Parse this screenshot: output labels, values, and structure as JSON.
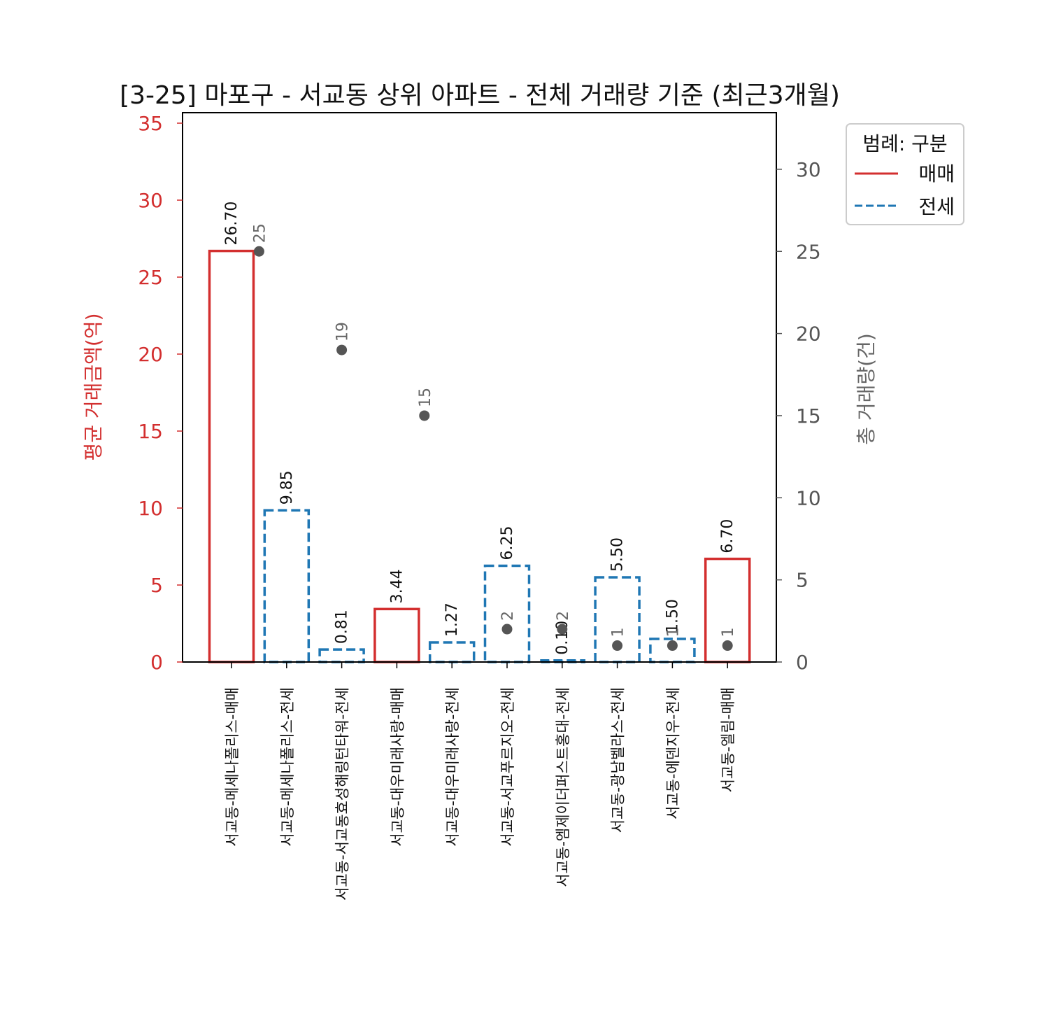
{
  "chart_data": {
    "type": "bar",
    "title": "[3-25] 마포구 - 서교동 상위 아파트 - 전체 거래량 기준 (최근3개월)",
    "xlabel": "",
    "ylabel": "평균 거래금액(억)",
    "ylabel_right": "총 거래량(건)",
    "ylim": [
      0,
      35
    ],
    "ylim_right": [
      0,
      33
    ],
    "yticks": [
      0,
      5,
      10,
      15,
      20,
      25,
      30,
      35
    ],
    "yticks_right": [
      0,
      5,
      10,
      15,
      20,
      25,
      30
    ],
    "grid": false,
    "legend_position": "upper right outside",
    "legend": {
      "title": "범례: 구분",
      "entries": [
        {
          "label": "매매",
          "color": "#d32f2f",
          "style": "solid"
        },
        {
          "label": "전세",
          "color": "#1f77b4",
          "style": "dashed"
        }
      ]
    },
    "categories": [
      "서교동-메세나폴리스-매매",
      "서교동-메세나폴리스-전세",
      "서교동-서교동효성해링턴타워-전세",
      "서교동-대우미래사랑-매매",
      "서교동-대우미래사랑-전세",
      "서교동-서교푸르지오-전세",
      "서교동-엠제이더퍼스트홍대-전세",
      "서교동-광남벨라스-전세",
      "서교동-에덴지우-전세",
      "서교동-엘림-매매"
    ],
    "series": [
      {
        "name": "평균 거래금액(억)",
        "kind": "bar",
        "values": [
          26.7,
          9.85,
          0.81,
          3.44,
          1.27,
          6.25,
          0.1,
          5.5,
          1.5,
          6.7
        ],
        "labels": [
          "26.70",
          "9.85",
          "0.81",
          "3.44",
          "1.27",
          "6.25",
          "0.10",
          "5.50",
          "1.50",
          "6.70"
        ],
        "types": [
          "매매",
          "전세",
          "전세",
          "매매",
          "전세",
          "전세",
          "전세",
          "전세",
          "전세",
          "매매"
        ]
      },
      {
        "name": "총 거래량(건)",
        "kind": "scatter",
        "axis": "right",
        "color": "#555555",
        "points": [
          {
            "x": 0.5,
            "y": 25,
            "label": "25"
          },
          {
            "x": 2,
            "y": 19,
            "label": "19"
          },
          {
            "x": 3.5,
            "y": 15,
            "label": "15"
          },
          {
            "x": 5,
            "y": 2,
            "label": "2"
          },
          {
            "x": 6,
            "y": 2,
            "label": "2"
          },
          {
            "x": 7,
            "y": 1,
            "label": "1"
          },
          {
            "x": 8,
            "y": 1,
            "label": "1"
          },
          {
            "x": 9,
            "y": 1,
            "label": "1"
          }
        ]
      }
    ]
  },
  "colors": {
    "sale": "#d32f2f",
    "jeonse": "#1f77b4",
    "scatter": "#555555"
  }
}
